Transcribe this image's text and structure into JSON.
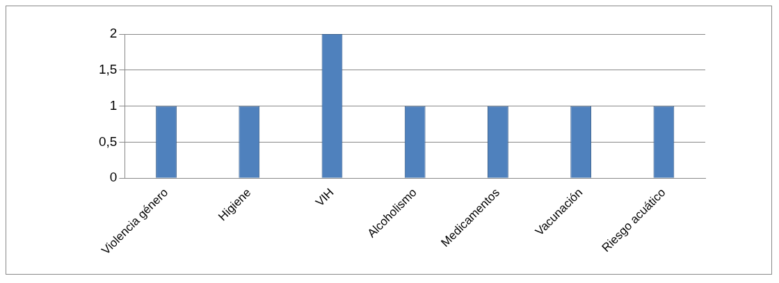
{
  "chart_data": {
    "type": "bar",
    "categories": [
      "Violencia género",
      "Higiene",
      "VIH",
      "Alcoholismo",
      "Medicamentos",
      "Vacunación",
      "Riesgo acuático"
    ],
    "values": [
      1,
      1,
      2,
      1,
      1,
      1,
      1
    ],
    "color": "#4f81bd",
    "ylim": [
      0,
      2
    ],
    "yticks": [
      0,
      {
        "value": 0.5,
        "label": "0,5"
      },
      1,
      {
        "value": 1.5,
        "label": "1,5"
      },
      2
    ],
    "grid": "y"
  }
}
